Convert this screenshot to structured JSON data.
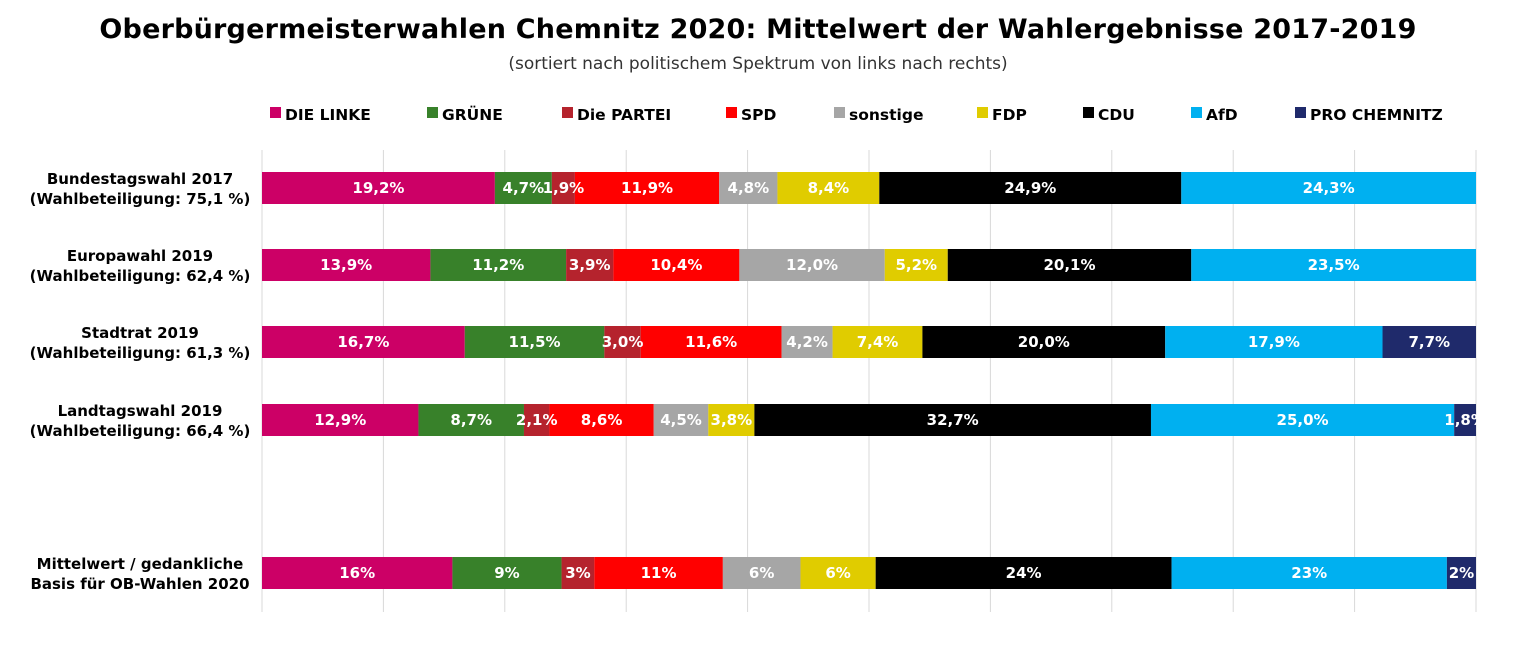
{
  "chart_data": {
    "type": "bar",
    "orientation": "horizontal",
    "stacked": "100%",
    "title": "Oberbürgermeisterwahlen Chemnitz 2020: Mittelwert der Wahlergebnisse 2017-2019",
    "subtitle": "(sortiert nach politischem Spektrum von links nach rechts)",
    "legend_position": "top",
    "grid": true,
    "xlim": [
      0,
      100
    ],
    "categories": [
      [
        "Bundestagswahl 2017",
        "(Wahlbeteiligung: 75,1 %)"
      ],
      [
        "Europawahl 2019",
        "(Wahlbeteiligung: 62,4 %)"
      ],
      [
        "Stadtrat 2019",
        "(Wahlbeteiligung: 61,3 %)"
      ],
      [
        "Landtagswahl 2019",
        "(Wahlbeteiligung: 66,4 %)"
      ],
      null,
      [
        "Mittelwert / gedankliche",
        "Basis für OB-Wahlen 2020"
      ]
    ],
    "series": [
      {
        "name": "DIE LINKE",
        "color": "#cc0066",
        "values": [
          19.2,
          13.9,
          16.7,
          12.9,
          null,
          15.7
        ],
        "labels": [
          "19,2%",
          "13,9%",
          "16,7%",
          "12,9%",
          null,
          "16%"
        ]
      },
      {
        "name": "GRÜNE",
        "color": "#38812a",
        "values": [
          4.7,
          11.2,
          11.5,
          8.7,
          null,
          9.0
        ],
        "labels": [
          "4,7%",
          "11,2%",
          "11,5%",
          "8,7%",
          null,
          "9%"
        ]
      },
      {
        "name": "Die PARTEI",
        "color": "#b5232d",
        "values": [
          1.9,
          3.9,
          3.0,
          2.1,
          null,
          2.7
        ],
        "labels": [
          "1,9%",
          "3,9%",
          "3,0%",
          "2,1%",
          null,
          "3%"
        ]
      },
      {
        "name": "SPD",
        "color": "#ff0000",
        "values": [
          11.9,
          10.4,
          11.6,
          8.6,
          null,
          10.6
        ],
        "labels": [
          "11,9%",
          "10,4%",
          "11,6%",
          "8,6%",
          null,
          "11%"
        ]
      },
      {
        "name": "sonstige",
        "color": "#a6a6a6",
        "values": [
          4.8,
          12.0,
          4.2,
          4.5,
          null,
          6.4
        ],
        "labels": [
          "4,8%",
          "12,0%",
          "4,2%",
          "4,5%",
          null,
          "6%"
        ]
      },
      {
        "name": "FDP",
        "color": "#e0cc00",
        "values": [
          8.4,
          5.2,
          7.4,
          3.8,
          null,
          6.2
        ],
        "labels": [
          "8,4%",
          "5,2%",
          "7,4%",
          "3,8%",
          null,
          "6%"
        ]
      },
      {
        "name": "CDU",
        "color": "#000000",
        "values": [
          24.9,
          20.1,
          20.0,
          32.7,
          null,
          24.4
        ],
        "labels": [
          "24,9%",
          "20,1%",
          "20,0%",
          "32,7%",
          null,
          "24%"
        ]
      },
      {
        "name": "AfD",
        "color": "#00b0f0",
        "values": [
          24.3,
          23.5,
          17.9,
          25.0,
          null,
          22.7
        ],
        "labels": [
          "24,3%",
          "23,5%",
          "17,9%",
          "25,0%",
          null,
          "23%"
        ]
      },
      {
        "name": "PRO CHEMNITZ",
        "color": "#1f2a6b",
        "values": [
          0,
          0,
          7.7,
          1.8,
          null,
          2.4
        ],
        "labels": [
          null,
          null,
          "7,7%",
          "1,8%",
          null,
          "2%"
        ]
      }
    ]
  }
}
